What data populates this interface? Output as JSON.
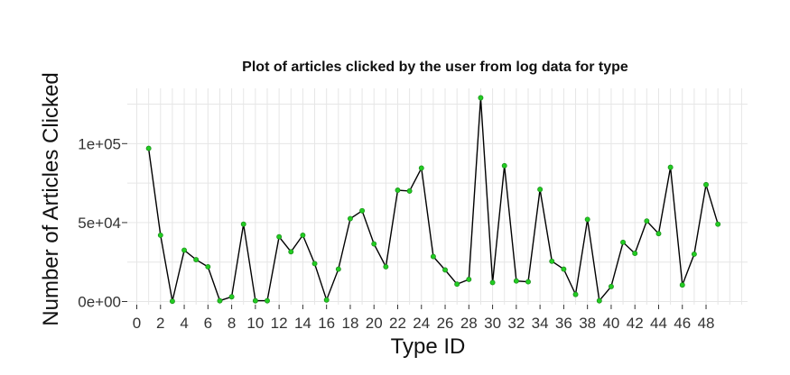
{
  "chart_data": {
    "type": "line",
    "title": "Plot of articles clicked by the user from log data for type",
    "xlabel": "Type ID",
    "ylabel": "Number of Articles Clicked",
    "x_ticks": [
      "0",
      "2",
      "4",
      "6",
      "8",
      "10",
      "12",
      "14",
      "16",
      "18",
      "20",
      "22",
      "24",
      "26",
      "28",
      "30",
      "32",
      "34",
      "36",
      "38",
      "40",
      "42",
      "44",
      "46",
      "48"
    ],
    "y_ticks": [
      "0e+00",
      "5e+04",
      "1e+05"
    ],
    "xlim": [
      -0.8,
      51.5
    ],
    "ylim": [
      -2000,
      135000
    ],
    "grid": true,
    "x": [
      1,
      2,
      3,
      4,
      5,
      6,
      7,
      8,
      9,
      10,
      11,
      12,
      13,
      14,
      15,
      16,
      17,
      18,
      19,
      20,
      21,
      22,
      23,
      24,
      25,
      26,
      27,
      28,
      29,
      30,
      31,
      32,
      33,
      34,
      35,
      36,
      37,
      38,
      39,
      40,
      41,
      42,
      43,
      44,
      45,
      46,
      47,
      48,
      49
    ],
    "series": [
      {
        "values": [
          97000,
          42000,
          200,
          32500,
          26500,
          22000,
          500,
          3000,
          49000,
          500,
          500,
          41000,
          31500,
          42000,
          24000,
          1000,
          20500,
          52500,
          57500,
          36500,
          22000,
          70500,
          70000,
          84500,
          28500,
          20000,
          11000,
          14000,
          129000,
          12000,
          86000,
          13000,
          12500,
          71000,
          25500,
          20500,
          4500,
          52000,
          500,
          9500,
          37500,
          30500,
          51000,
          43000,
          85000,
          10500,
          30000,
          74000,
          49000
        ],
        "color": "#000000",
        "marker_color": "#22cc22"
      }
    ]
  }
}
